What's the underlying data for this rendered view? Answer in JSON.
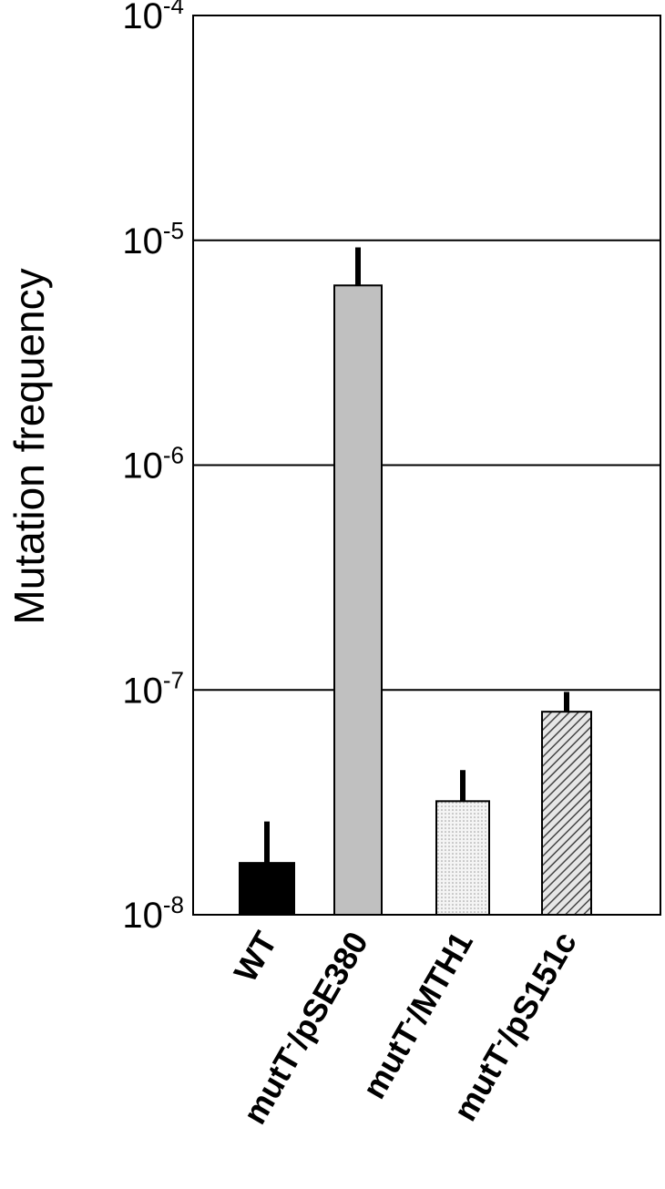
{
  "chart_data": {
    "type": "bar",
    "ylabel": "Mutation frequency",
    "yscale": "log",
    "ylim": [
      1e-08,
      0.0001
    ],
    "yticks": [
      {
        "base": "10",
        "exp": "-8",
        "value": 1e-08
      },
      {
        "base": "10",
        "exp": "-7",
        "value": 1e-07
      },
      {
        "base": "10",
        "exp": "-6",
        "value": 1e-06
      },
      {
        "base": "10",
        "exp": "-5",
        "value": 1e-05
      },
      {
        "base": "10",
        "exp": "-4",
        "value": 0.0001
      }
    ],
    "grid": "horizontal lines at decades",
    "categories": [
      {
        "prefix": "WT",
        "sup": "",
        "suffix": ""
      },
      {
        "prefix": "mutT",
        "sup": "-",
        "suffix": "/pSE380"
      },
      {
        "prefix": "mutT",
        "sup": "-",
        "suffix": "/MTH1"
      },
      {
        "prefix": "mutT",
        "sup": "-",
        "suffix": "/pS151c"
      }
    ],
    "values": [
      1.7e-08,
      6.3e-06,
      3.2e-08,
      8e-08
    ],
    "errors_upper": [
      2.6e-08,
      9.3e-06,
      4.4e-08,
      9.8e-08
    ],
    "fills": [
      "solid-black",
      "solid-gray",
      "dotted-light",
      "diagonal-hatch"
    ],
    "colors": {
      "bar_black": "#000000",
      "bar_gray": "#c0c0c0",
      "bar_dotted": "#f2f2f2",
      "hatch": "#555555"
    }
  }
}
